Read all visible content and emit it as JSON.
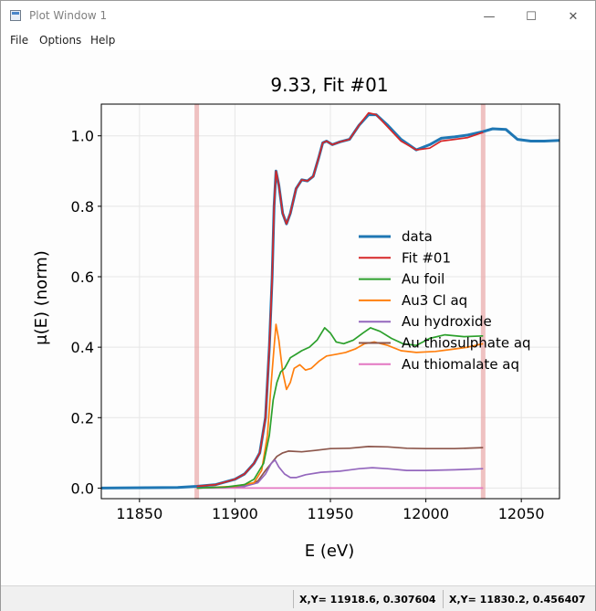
{
  "window": {
    "title": "Plot Window 1",
    "controls": {
      "minimize": "—",
      "maximize": "☐",
      "close": "✕"
    }
  },
  "menu": [
    "File",
    "Options",
    "Help"
  ],
  "status": {
    "cursor_1": "X,Y= 11918.6, 0.307604",
    "cursor_2": "X,Y= 11830.2, 0.456407"
  },
  "colors": {
    "data": "#1f77b4",
    "fit": "#d62728",
    "au_foil": "#2ca02c",
    "au3_cl_aq": "#ff7f0e",
    "au_hydroxide": "#9467bd",
    "au_thiosulphate_aq": "#8c564b",
    "au_thiomalate_aq": "#e377c2",
    "fit_range_markers": "#e8a6a6"
  },
  "chart_data": {
    "type": "line",
    "title": "9.33, Fit #01",
    "xlabel": "E (eV)",
    "ylabel": "μ(E) (norm)",
    "xlim": [
      11830,
      12070
    ],
    "ylim": [
      -0.03,
      1.09
    ],
    "xticks": [
      11850,
      11900,
      11950,
      12000,
      12050
    ],
    "yticks": [
      0.0,
      0.2,
      0.4,
      0.6,
      0.8,
      1.0
    ],
    "xtick_labels": [
      "11850",
      "11900",
      "11950",
      "12000",
      "12050"
    ],
    "ytick_labels": [
      "0.0",
      "0.2",
      "0.4",
      "0.6",
      "0.8",
      "1.0"
    ],
    "grid": true,
    "legend_position": "center-right",
    "vertical_markers": [
      11880,
      12030
    ],
    "series": [
      {
        "name": "data",
        "color": "#1f77b4",
        "width": 3,
        "points": [
          [
            11830,
            0.0
          ],
          [
            11870,
            0.002
          ],
          [
            11880,
            0.005
          ],
          [
            11890,
            0.01
          ],
          [
            11900,
            0.025
          ],
          [
            11905,
            0.04
          ],
          [
            11910,
            0.07
          ],
          [
            11913,
            0.1
          ],
          [
            11916,
            0.2
          ],
          [
            11918,
            0.4
          ],
          [
            11919.5,
            0.6
          ],
          [
            11920.5,
            0.8
          ],
          [
            11921.5,
            0.9
          ],
          [
            11923,
            0.86
          ],
          [
            11925,
            0.78
          ],
          [
            11927,
            0.75
          ],
          [
            11929,
            0.78
          ],
          [
            11932,
            0.85
          ],
          [
            11935,
            0.875
          ],
          [
            11938,
            0.872
          ],
          [
            11941,
            0.885
          ],
          [
            11944,
            0.94
          ],
          [
            11946,
            0.98
          ],
          [
            11948,
            0.985
          ],
          [
            11951,
            0.975
          ],
          [
            11955,
            0.983
          ],
          [
            11960,
            0.99
          ],
          [
            11965,
            1.03
          ],
          [
            11970,
            1.06
          ],
          [
            11974,
            1.06
          ],
          [
            11980,
            1.03
          ],
          [
            11987,
            0.99
          ],
          [
            11995,
            0.96
          ],
          [
            12002,
            0.975
          ],
          [
            12008,
            0.993
          ],
          [
            12015,
            0.997
          ],
          [
            12022,
            1.002
          ],
          [
            12030,
            1.012
          ],
          [
            12035,
            1.02
          ],
          [
            12042,
            1.018
          ],
          [
            12048,
            0.99
          ],
          [
            12055,
            0.985
          ],
          [
            12062,
            0.985
          ],
          [
            12070,
            0.987
          ]
        ]
      },
      {
        "name": "Fit #01",
        "color": "#d62728",
        "width": 1.7,
        "points": [
          [
            11880,
            0.005
          ],
          [
            11890,
            0.01
          ],
          [
            11900,
            0.025
          ],
          [
            11905,
            0.04
          ],
          [
            11910,
            0.07
          ],
          [
            11913,
            0.1
          ],
          [
            11916,
            0.2
          ],
          [
            11918,
            0.4
          ],
          [
            11919.5,
            0.6
          ],
          [
            11920.5,
            0.8
          ],
          [
            11921.5,
            0.9
          ],
          [
            11923,
            0.86
          ],
          [
            11925,
            0.78
          ],
          [
            11927,
            0.75
          ],
          [
            11929,
            0.78
          ],
          [
            11932,
            0.85
          ],
          [
            11935,
            0.875
          ],
          [
            11938,
            0.872
          ],
          [
            11941,
            0.885
          ],
          [
            11944,
            0.94
          ],
          [
            11946,
            0.98
          ],
          [
            11948,
            0.985
          ],
          [
            11951,
            0.975
          ],
          [
            11955,
            0.983
          ],
          [
            11960,
            0.99
          ],
          [
            11965,
            1.03
          ],
          [
            11970,
            1.065
          ],
          [
            11974,
            1.06
          ],
          [
            11980,
            1.025
          ],
          [
            11987,
            0.985
          ],
          [
            11995,
            0.96
          ],
          [
            12002,
            0.965
          ],
          [
            12008,
            0.985
          ],
          [
            12015,
            0.99
          ],
          [
            12022,
            0.995
          ],
          [
            12030,
            1.01
          ]
        ]
      },
      {
        "name": "Au foil",
        "color": "#2ca02c",
        "width": 1.7,
        "points": [
          [
            11880,
            0.0
          ],
          [
            11895,
            0.003
          ],
          [
            11905,
            0.01
          ],
          [
            11910,
            0.025
          ],
          [
            11915,
            0.07
          ],
          [
            11918,
            0.15
          ],
          [
            11920,
            0.25
          ],
          [
            11922,
            0.3
          ],
          [
            11924,
            0.33
          ],
          [
            11926,
            0.34
          ],
          [
            11929,
            0.37
          ],
          [
            11932,
            0.38
          ],
          [
            11935,
            0.39
          ],
          [
            11939,
            0.4
          ],
          [
            11943,
            0.42
          ],
          [
            11947,
            0.455
          ],
          [
            11950,
            0.44
          ],
          [
            11953,
            0.415
          ],
          [
            11957,
            0.41
          ],
          [
            11962,
            0.42
          ],
          [
            11967,
            0.44
          ],
          [
            11971,
            0.455
          ],
          [
            11976,
            0.445
          ],
          [
            11982,
            0.425
          ],
          [
            11988,
            0.41
          ],
          [
            11995,
            0.405
          ],
          [
            12002,
            0.425
          ],
          [
            12010,
            0.435
          ],
          [
            12020,
            0.43
          ],
          [
            12030,
            0.432
          ]
        ]
      },
      {
        "name": "Au3 Cl aq",
        "color": "#ff7f0e",
        "width": 1.7,
        "points": [
          [
            11880,
            0.0
          ],
          [
            11900,
            0.005
          ],
          [
            11910,
            0.015
          ],
          [
            11914,
            0.05
          ],
          [
            11917,
            0.15
          ],
          [
            11919,
            0.3
          ],
          [
            11920.5,
            0.4
          ],
          [
            11921.5,
            0.465
          ],
          [
            11923,
            0.42
          ],
          [
            11925,
            0.33
          ],
          [
            11927,
            0.28
          ],
          [
            11929,
            0.3
          ],
          [
            11931,
            0.34
          ],
          [
            11934,
            0.35
          ],
          [
            11937,
            0.335
          ],
          [
            11940,
            0.34
          ],
          [
            11944,
            0.36
          ],
          [
            11948,
            0.375
          ],
          [
            11953,
            0.38
          ],
          [
            11958,
            0.385
          ],
          [
            11963,
            0.395
          ],
          [
            11968,
            0.41
          ],
          [
            11973,
            0.415
          ],
          [
            11980,
            0.405
          ],
          [
            11987,
            0.39
          ],
          [
            11995,
            0.385
          ],
          [
            12005,
            0.388
          ],
          [
            12015,
            0.395
          ],
          [
            12022,
            0.4
          ],
          [
            12030,
            0.41
          ]
        ]
      },
      {
        "name": "Au hydroxide",
        "color": "#9467bd",
        "width": 1.7,
        "points": [
          [
            11880,
            0.0
          ],
          [
            11905,
            0.005
          ],
          [
            11912,
            0.015
          ],
          [
            11916,
            0.04
          ],
          [
            11919,
            0.07
          ],
          [
            11921,
            0.08
          ],
          [
            11923,
            0.06
          ],
          [
            11926,
            0.04
          ],
          [
            11929,
            0.03
          ],
          [
            11932,
            0.03
          ],
          [
            11937,
            0.038
          ],
          [
            11945,
            0.045
          ],
          [
            11955,
            0.048
          ],
          [
            11965,
            0.055
          ],
          [
            11972,
            0.058
          ],
          [
            11980,
            0.055
          ],
          [
            11990,
            0.05
          ],
          [
            12000,
            0.05
          ],
          [
            12015,
            0.052
          ],
          [
            12030,
            0.055
          ]
        ]
      },
      {
        "name": "Au thiosulphate aq",
        "color": "#8c564b",
        "width": 1.7,
        "points": [
          [
            11880,
            0.0
          ],
          [
            11905,
            0.005
          ],
          [
            11912,
            0.02
          ],
          [
            11916,
            0.05
          ],
          [
            11919,
            0.07
          ],
          [
            11922,
            0.09
          ],
          [
            11925,
            0.1
          ],
          [
            11928,
            0.105
          ],
          [
            11935,
            0.103
          ],
          [
            11942,
            0.107
          ],
          [
            11950,
            0.112
          ],
          [
            11960,
            0.113
          ],
          [
            11970,
            0.118
          ],
          [
            11980,
            0.117
          ],
          [
            11990,
            0.113
          ],
          [
            12000,
            0.112
          ],
          [
            12015,
            0.112
          ],
          [
            12030,
            0.115
          ]
        ]
      },
      {
        "name": "Au thiomalate aq",
        "color": "#e377c2",
        "width": 1.7,
        "points": [
          [
            11880,
            0.0
          ],
          [
            12030,
            0.0
          ]
        ]
      }
    ]
  }
}
